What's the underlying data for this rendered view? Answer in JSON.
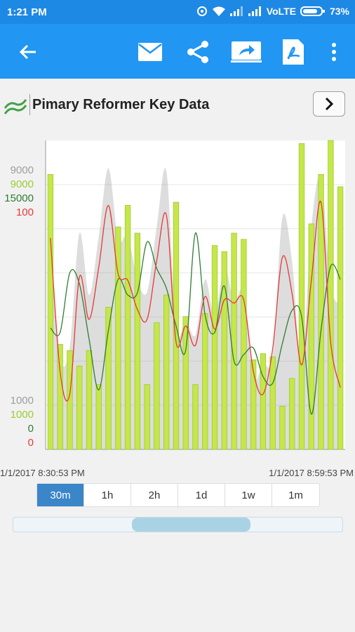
{
  "status": {
    "time": "1:21 PM",
    "network": "VoLTE",
    "battery": "73%"
  },
  "toolbar": {
    "back_icon": "arrow-left-icon",
    "mail_icon": "mail-icon",
    "share_icon": "share-icon",
    "forward_icon": "forward-screen-icon",
    "pdf_icon": "pdf-icon",
    "more_icon": "more-vertical-icon"
  },
  "header": {
    "title": "Pimary Reformer Key Data"
  },
  "colors": {
    "accent": "#2196f3",
    "bar": "#c6e64a",
    "red_series": "#e53935",
    "green_series": "#2e7d32",
    "grey_area": "#d3d3d3"
  },
  "chart_data": {
    "type": "bar",
    "x_start": "1/1/2017 8:30:53 PM",
    "x_end": "1/1/2017 8:59:53 PM",
    "axes": [
      {
        "color": "#9e9e9e",
        "max": "9000",
        "min": "1000"
      },
      {
        "color": "#9acd32",
        "max": "9000",
        "min": "1000"
      },
      {
        "color": "#2e7d32",
        "max": "15000",
        "min": "0"
      },
      {
        "color": "#e53935",
        "max": "100",
        "min": "0"
      }
    ],
    "series": [
      {
        "axis": "yellow-green",
        "kind": "bar",
        "values": [
          8900,
          3400,
          3200,
          2700,
          3200,
          2100,
          4600,
          7200,
          7900,
          7000,
          2100,
          4100,
          5000,
          8000,
          4300,
          2100,
          4400,
          6600,
          6400,
          7000,
          6800,
          2900,
          3100,
          3000,
          1400,
          2300,
          9900,
          7300,
          8900,
          10000,
          8500
        ]
      },
      {
        "axis": "grey",
        "kind": "area",
        "values": [
          6600,
          3000,
          3300,
          7000,
          5000,
          6900,
          9100,
          6800,
          6900,
          5500,
          5100,
          7200,
          9000,
          3900,
          4200,
          3700,
          5500,
          4300,
          5900,
          4800,
          5100,
          2300,
          2800,
          3000,
          7500,
          6100,
          2700,
          7200,
          8800,
          5300,
          4700
        ]
      },
      {
        "axis": "red",
        "kind": "line",
        "values": [
          75,
          34,
          27,
          63,
          50,
          66,
          85,
          64,
          62,
          53,
          50,
          68,
          82,
          43,
          48,
          42,
          57,
          47,
          56,
          55,
          56,
          34,
          27,
          41,
          69,
          58,
          36,
          62,
          86,
          43,
          29
        ]
      },
      {
        "axis": "green",
        "kind": "line",
        "values": [
          5500,
          5300,
          8000,
          7500,
          5000,
          2700,
          5400,
          7700,
          7000,
          7100,
          9400,
          8200,
          7300,
          5600,
          4500,
          9800,
          6100,
          5300,
          7400,
          4000,
          4300,
          4600,
          3300,
          3000,
          4800,
          6300,
          6000,
          1600,
          5400,
          8300,
          7700
        ]
      }
    ]
  },
  "range": {
    "options": [
      "30m",
      "1h",
      "2h",
      "1d",
      "1w",
      "1m"
    ],
    "selected": "30m"
  },
  "slider": {
    "window_start": 0.36,
    "window_end": 0.72
  }
}
